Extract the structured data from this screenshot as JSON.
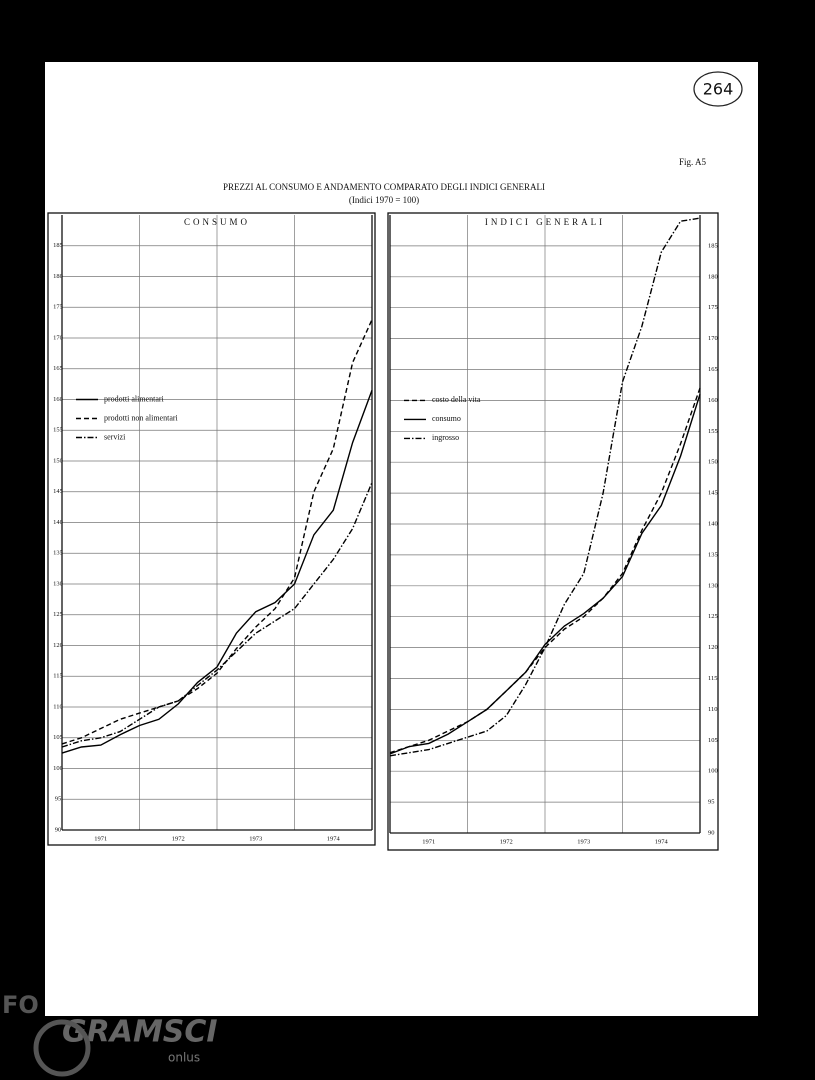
{
  "page": {
    "number": "264",
    "figure": "Fig. A5",
    "title": "PREZZI AL CONSUMO E ANDAMENTO COMPARATO DEGLI INDICI GENERALI",
    "subtitle": "(Indici 1970 = 100)"
  },
  "watermark": {
    "left": "FO",
    "brand": "GRAMSCI",
    "tag": "onlus"
  },
  "chart_data": [
    {
      "type": "line",
      "title": "CONSUMO",
      "yaxis_side": "left",
      "legend": "middle-left",
      "grid": true,
      "x": [
        1971,
        1971.25,
        1971.5,
        1971.75,
        1972,
        1972.25,
        1972.5,
        1972.75,
        1973,
        1973.25,
        1973.5,
        1973.75,
        1974,
        1974.25,
        1974.5,
        1974.75,
        1975
      ],
      "xlim": [
        1971,
        1975
      ],
      "xticks": [
        1971,
        1972,
        1973,
        1974
      ],
      "ylim": [
        90,
        190
      ],
      "yticks": [
        90,
        95,
        100,
        105,
        110,
        115,
        120,
        125,
        130,
        135,
        140,
        145,
        150,
        155,
        160,
        165,
        170,
        175,
        180,
        185
      ],
      "series": [
        {
          "name": "prodotti alimentari",
          "color": "#000000",
          "style": "solid",
          "values": [
            102.5,
            103.5,
            103.8,
            105.5,
            107,
            108,
            110.5,
            114,
            116.5,
            122,
            125.5,
            127,
            130,
            138,
            142,
            153,
            161.5
          ]
        },
        {
          "name": "prodotti non alimentari",
          "color": "#000000",
          "style": "dashed",
          "values": [
            104,
            105,
            106.5,
            108,
            109,
            110,
            111,
            113,
            115.5,
            119.5,
            123,
            126,
            131,
            145,
            152,
            166,
            173
          ]
        },
        {
          "name": "servizi",
          "color": "#000000",
          "style": "dashdot",
          "values": [
            103.5,
            104.5,
            105,
            106,
            108,
            110,
            111,
            113.5,
            116,
            119,
            122,
            124,
            126,
            130,
            134,
            139,
            146.5
          ]
        }
      ]
    },
    {
      "type": "line",
      "title": "INDICI GENERALI",
      "yaxis_side": "right",
      "legend": "middle-left",
      "grid": true,
      "x": [
        1971,
        1971.25,
        1971.5,
        1971.75,
        1972,
        1972.25,
        1972.5,
        1972.75,
        1973,
        1973.25,
        1973.5,
        1973.75,
        1974,
        1974.25,
        1974.5,
        1974.75,
        1975
      ],
      "xlim": [
        1971,
        1975
      ],
      "xticks": [
        1971,
        1972,
        1973,
        1974
      ],
      "ylim": [
        90,
        190
      ],
      "yticks": [
        90,
        95,
        100,
        105,
        110,
        115,
        120,
        125,
        130,
        135,
        140,
        145,
        150,
        155,
        160,
        165,
        170,
        175,
        180,
        185
      ],
      "series": [
        {
          "name": "costo della vita",
          "color": "#000000",
          "style": "dashed",
          "values": [
            103,
            104,
            105,
            106.5,
            108,
            110,
            113,
            116,
            120,
            123,
            125,
            128,
            132,
            139,
            145,
            153,
            162
          ]
        },
        {
          "name": "consumo",
          "color": "#000000",
          "style": "solid",
          "values": [
            102.8,
            104,
            104.5,
            106,
            108,
            110,
            113,
            116,
            120.5,
            123.5,
            125.5,
            128,
            131.5,
            138.5,
            143,
            151,
            161
          ]
        },
        {
          "name": "ingrosso",
          "color": "#000000",
          "style": "dashdot",
          "values": [
            102.5,
            103,
            103.5,
            104.5,
            105.5,
            106.5,
            109,
            114,
            120,
            127,
            132,
            145,
            163,
            172,
            184,
            189,
            189.5
          ]
        }
      ]
    }
  ]
}
